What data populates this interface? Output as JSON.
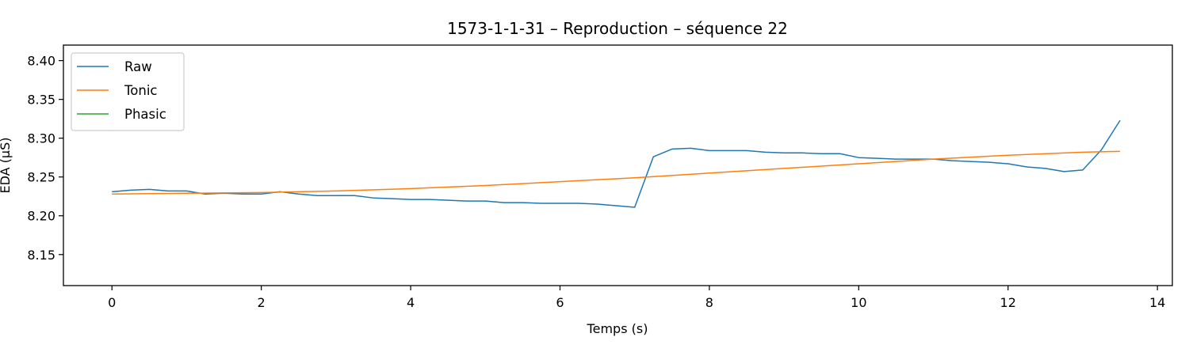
{
  "chart_data": {
    "type": "line",
    "title": "1573-1-1-31 – Reproduction – séquence 22",
    "xlabel": "Temps (s)",
    "ylabel": "EDA (µS)",
    "xlim": [
      -0.65,
      14.2
    ],
    "ylim": [
      8.11,
      8.42
    ],
    "xticks": [
      0,
      2,
      4,
      6,
      8,
      10,
      12,
      14
    ],
    "yticks": [
      8.15,
      8.2,
      8.25,
      8.3,
      8.35,
      8.4
    ],
    "xtick_labels": [
      "0",
      "2",
      "4",
      "6",
      "8",
      "10",
      "12",
      "14"
    ],
    "ytick_labels": [
      "8.15",
      "8.20",
      "8.25",
      "8.30",
      "8.35",
      "8.40"
    ],
    "legend_position": "top-left",
    "series": [
      {
        "name": "Raw",
        "color": "#1f77b4",
        "x": [
          0.0,
          0.25,
          0.5,
          0.75,
          1.0,
          1.25,
          1.5,
          1.75,
          2.0,
          2.25,
          2.5,
          2.75,
          3.0,
          3.25,
          3.5,
          3.75,
          4.0,
          4.25,
          4.5,
          4.75,
          5.0,
          5.25,
          5.5,
          5.75,
          6.0,
          6.25,
          6.5,
          6.75,
          7.0,
          7.25,
          7.5,
          7.75,
          8.0,
          8.25,
          8.5,
          8.75,
          9.0,
          9.25,
          9.5,
          9.75,
          10.0,
          10.25,
          10.5,
          10.75,
          11.0,
          11.25,
          11.5,
          11.75,
          12.0,
          12.25,
          12.5,
          12.75,
          13.0,
          13.25,
          13.5
        ],
        "y": [
          8.231,
          8.233,
          8.234,
          8.232,
          8.232,
          8.228,
          8.229,
          8.228,
          8.228,
          8.231,
          8.228,
          8.226,
          8.226,
          8.226,
          8.223,
          8.222,
          8.221,
          8.221,
          8.22,
          8.219,
          8.219,
          8.217,
          8.217,
          8.216,
          8.216,
          8.216,
          8.215,
          8.213,
          8.211,
          8.276,
          8.286,
          8.287,
          8.284,
          8.284,
          8.284,
          8.282,
          8.281,
          8.281,
          8.28,
          8.28,
          8.275,
          8.274,
          8.273,
          8.273,
          8.273,
          8.271,
          8.27,
          8.269,
          8.267,
          8.263,
          8.261,
          8.257,
          8.259,
          8.285,
          8.323
        ]
      },
      {
        "name": "Tonic",
        "color": "#ff7f0e",
        "x": [
          0.0,
          1.0,
          2.0,
          3.0,
          4.0,
          5.0,
          6.0,
          7.0,
          8.0,
          9.0,
          10.0,
          11.0,
          12.0,
          13.0,
          13.5
        ],
        "y": [
          8.228,
          8.229,
          8.23,
          8.232,
          8.235,
          8.239,
          8.244,
          8.249,
          8.255,
          8.261,
          8.267,
          8.273,
          8.278,
          8.282,
          8.283
        ]
      },
      {
        "name": "Phasic",
        "color": "#2ca02c",
        "x": [],
        "y": []
      }
    ]
  }
}
